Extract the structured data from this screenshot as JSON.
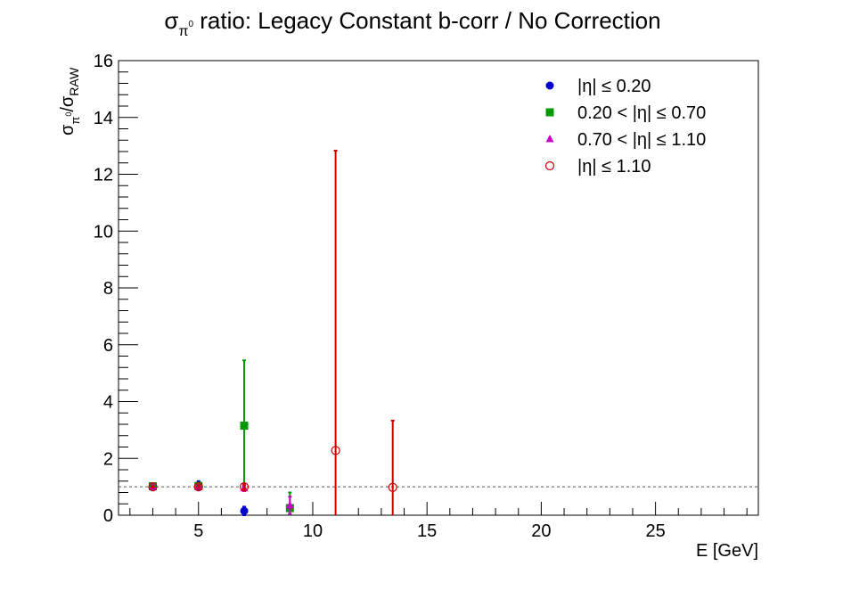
{
  "chart_data": {
    "type": "scatter",
    "title": {
      "prefix": "σ",
      "sub": "π",
      "sup": "0",
      "rest": " ratio: Legacy Constant b-corr / No Correction"
    },
    "xlabel": "E [GeV]",
    "ylabel": {
      "num": "σ",
      "num_sub": "π",
      "num_sup": "0",
      "sep": "/σ",
      "den_sub": "RAW"
    },
    "xlim": [
      1.5,
      29.5
    ],
    "ylim": [
      0,
      16
    ],
    "xticks": [
      5,
      10,
      15,
      20,
      25
    ],
    "xtick_labels": [
      "5",
      "10",
      "15",
      "20",
      "25"
    ],
    "yticks": [
      0,
      2,
      4,
      6,
      8,
      10,
      12,
      14,
      16
    ],
    "ytick_labels": [
      "0",
      "2",
      "4",
      "6",
      "8",
      "10",
      "12",
      "14",
      "16"
    ],
    "reference_line": 1.0,
    "legend_position": "top-right",
    "series": [
      {
        "name": "|η| ≤ 0.20",
        "marker": "circle",
        "color": "#0000cc",
        "points": [
          {
            "x": 3,
            "y": 1.0,
            "err": 0.05
          },
          {
            "x": 5,
            "y": 1.05,
            "err": 0.15
          },
          {
            "x": 7,
            "y": 0.15,
            "err": 0.15
          }
        ]
      },
      {
        "name": "0.20 < |η| ≤ 0.70",
        "marker": "square",
        "color": "#009900",
        "points": [
          {
            "x": 3,
            "y": 1.02,
            "err": 0.05
          },
          {
            "x": 5,
            "y": 1.03,
            "err": 0.1
          },
          {
            "x": 7,
            "y": 3.15,
            "err": 2.3
          },
          {
            "x": 9,
            "y": 0.25,
            "err": 0.55
          }
        ]
      },
      {
        "name": "0.70 < |η| ≤ 1.10",
        "marker": "triangle",
        "color": "#cc00cc",
        "points": [
          {
            "x": 3,
            "y": 1.0,
            "err": 0.05
          },
          {
            "x": 5,
            "y": 1.0,
            "err": 0.05
          },
          {
            "x": 7,
            "y": 0.95,
            "err": 0.1
          },
          {
            "x": 9,
            "y": 0.35,
            "err": 0.3
          }
        ]
      },
      {
        "name": "|η| ≤ 1.10",
        "marker": "open-circle",
        "color": "#cc0000",
        "points": [
          {
            "x": 3,
            "y": 1.0,
            "err": 0.03
          },
          {
            "x": 5,
            "y": 1.0,
            "err": 0.05
          },
          {
            "x": 7,
            "y": 1.0,
            "err": 0.08
          },
          {
            "x": 11,
            "y": 2.28,
            "err": 10.55
          },
          {
            "x": 13.5,
            "y": 0.98,
            "err": 2.35
          }
        ]
      }
    ]
  }
}
